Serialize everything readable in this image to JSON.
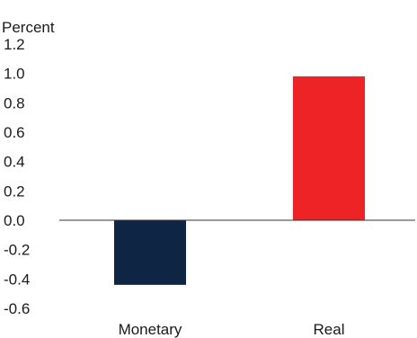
{
  "chart_data": {
    "type": "bar",
    "ylabel": "Percent",
    "categories": [
      "Monetary",
      "Real"
    ],
    "values": [
      -0.44,
      0.98
    ],
    "ylim": [
      -0.6,
      1.2
    ],
    "yticks": [
      "1.2",
      "1.0",
      "0.8",
      "0.6",
      "0.4",
      "0.2",
      "0.0",
      "-0.2",
      "-0.4",
      "-0.6"
    ],
    "ytick_values": [
      1.2,
      1.0,
      0.8,
      0.6,
      0.4,
      0.2,
      0.0,
      -0.2,
      -0.4,
      -0.6
    ],
    "colors": [
      "#0e2644",
      "#ee2326"
    ],
    "grid": false,
    "legend": "none"
  }
}
